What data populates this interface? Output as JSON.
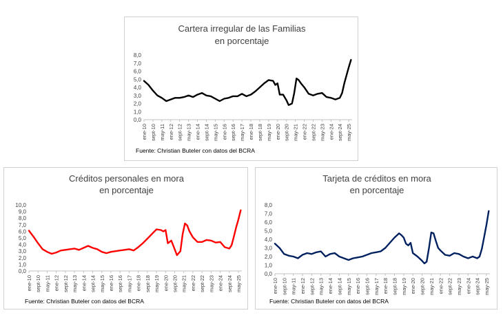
{
  "chart_data": [
    {
      "id": "top",
      "type": "line",
      "title": "Cartera irregular de las Familias",
      "subtitle": "en porcentaje",
      "source": "Fuente: Christian Buteler con datos del BCRA",
      "color": "#000000",
      "ylim": [
        0,
        8
      ],
      "ytick_step": 1,
      "xlim": [
        0,
        187
      ],
      "grid": false,
      "legend": "none",
      "x_ticks": [
        {
          "label": "ene-10",
          "pos": 0
        },
        {
          "label": "sept-10",
          "pos": 8
        },
        {
          "label": "may-11",
          "pos": 16
        },
        {
          "label": "ene-12",
          "pos": 24
        },
        {
          "label": "sept-12",
          "pos": 32
        },
        {
          "label": "may-13",
          "pos": 40
        },
        {
          "label": "ene-14",
          "pos": 48
        },
        {
          "label": "sept-14",
          "pos": 56
        },
        {
          "label": "may-15",
          "pos": 64
        },
        {
          "label": "ene-16",
          "pos": 72
        },
        {
          "label": "sept-16",
          "pos": 80
        },
        {
          "label": "may-17",
          "pos": 88
        },
        {
          "label": "ene-18",
          "pos": 96
        },
        {
          "label": "sept-18",
          "pos": 104
        },
        {
          "label": "may-19",
          "pos": 112
        },
        {
          "label": "ene-20",
          "pos": 120
        },
        {
          "label": "sept-20",
          "pos": 128
        },
        {
          "label": "may-21",
          "pos": 136
        },
        {
          "label": "ene-22",
          "pos": 144
        },
        {
          "label": "sept-22",
          "pos": 152
        },
        {
          "label": "may-23",
          "pos": 160
        },
        {
          "label": "ene-24",
          "pos": 168
        },
        {
          "label": "sept-24",
          "pos": 176
        },
        {
          "label": "may-25",
          "pos": 184
        }
      ],
      "points": [
        [
          0,
          4.8
        ],
        [
          4,
          4.3
        ],
        [
          8,
          3.6
        ],
        [
          12,
          3.0
        ],
        [
          16,
          2.7
        ],
        [
          20,
          2.3
        ],
        [
          24,
          2.5
        ],
        [
          28,
          2.7
        ],
        [
          32,
          2.7
        ],
        [
          36,
          2.8
        ],
        [
          40,
          3.0
        ],
        [
          44,
          2.8
        ],
        [
          48,
          3.1
        ],
        [
          52,
          3.3
        ],
        [
          56,
          3.0
        ],
        [
          60,
          2.9
        ],
        [
          64,
          2.6
        ],
        [
          68,
          2.3
        ],
        [
          72,
          2.6
        ],
        [
          76,
          2.7
        ],
        [
          80,
          2.9
        ],
        [
          84,
          2.9
        ],
        [
          88,
          3.2
        ],
        [
          92,
          2.9
        ],
        [
          96,
          3.1
        ],
        [
          100,
          3.5
        ],
        [
          104,
          4.0
        ],
        [
          108,
          4.5
        ],
        [
          112,
          4.9
        ],
        [
          116,
          4.8
        ],
        [
          118,
          4.3
        ],
        [
          120,
          4.5
        ],
        [
          122,
          3.1
        ],
        [
          125,
          3.1
        ],
        [
          128,
          2.4
        ],
        [
          130,
          1.8
        ],
        [
          133,
          2.0
        ],
        [
          135,
          3.3
        ],
        [
          137,
          5.1
        ],
        [
          139,
          4.9
        ],
        [
          141,
          4.5
        ],
        [
          144,
          4.0
        ],
        [
          148,
          3.2
        ],
        [
          152,
          3.0
        ],
        [
          156,
          3.2
        ],
        [
          160,
          3.3
        ],
        [
          164,
          2.8
        ],
        [
          168,
          2.7
        ],
        [
          172,
          2.5
        ],
        [
          176,
          2.7
        ],
        [
          178,
          3.3
        ],
        [
          180,
          4.5
        ],
        [
          182,
          5.5
        ],
        [
          184,
          6.5
        ],
        [
          186,
          7.4
        ]
      ]
    },
    {
      "id": "left",
      "type": "line",
      "title": "Créditos personales en mora",
      "subtitle": "en porcentaje",
      "source": "Fuente: Christian Buteler con datos del BCRA",
      "color": "#ff0000",
      "ylim": [
        0,
        10
      ],
      "ytick_step": 1,
      "xlim": [
        0,
        187
      ],
      "grid": false,
      "legend": "none",
      "x_ticks": [
        {
          "label": "ene-10",
          "pos": 0
        },
        {
          "label": "sept-10",
          "pos": 8
        },
        {
          "label": "may-11",
          "pos": 16
        },
        {
          "label": "ene-12",
          "pos": 24
        },
        {
          "label": "sept-12",
          "pos": 32
        },
        {
          "label": "may-13",
          "pos": 40
        },
        {
          "label": "ene-14",
          "pos": 48
        },
        {
          "label": "sept-14",
          "pos": 56
        },
        {
          "label": "may-15",
          "pos": 64
        },
        {
          "label": "ene-16",
          "pos": 72
        },
        {
          "label": "sept-16",
          "pos": 80
        },
        {
          "label": "may-17",
          "pos": 88
        },
        {
          "label": "ene-18",
          "pos": 96
        },
        {
          "label": "sept-18",
          "pos": 104
        },
        {
          "label": "may-19",
          "pos": 112
        },
        {
          "label": "ene-20",
          "pos": 120
        },
        {
          "label": "sept-20",
          "pos": 128
        },
        {
          "label": "may-21",
          "pos": 136
        },
        {
          "label": "ene-22",
          "pos": 144
        },
        {
          "label": "sept-22",
          "pos": 152
        },
        {
          "label": "may-23",
          "pos": 160
        },
        {
          "label": "ene-24",
          "pos": 168
        },
        {
          "label": "sept-24",
          "pos": 176
        },
        {
          "label": "may-25",
          "pos": 184
        }
      ],
      "points": [
        [
          0,
          6.1
        ],
        [
          4,
          5.2
        ],
        [
          8,
          4.2
        ],
        [
          12,
          3.3
        ],
        [
          16,
          2.9
        ],
        [
          20,
          2.6
        ],
        [
          24,
          2.8
        ],
        [
          28,
          3.1
        ],
        [
          32,
          3.2
        ],
        [
          36,
          3.3
        ],
        [
          40,
          3.4
        ],
        [
          44,
          3.2
        ],
        [
          48,
          3.5
        ],
        [
          52,
          3.8
        ],
        [
          56,
          3.5
        ],
        [
          60,
          3.3
        ],
        [
          64,
          2.9
        ],
        [
          68,
          2.7
        ],
        [
          72,
          2.9
        ],
        [
          76,
          3.0
        ],
        [
          80,
          3.1
        ],
        [
          84,
          3.2
        ],
        [
          88,
          3.3
        ],
        [
          92,
          3.1
        ],
        [
          96,
          3.6
        ],
        [
          100,
          4.2
        ],
        [
          104,
          4.9
        ],
        [
          108,
          5.6
        ],
        [
          112,
          6.3
        ],
        [
          116,
          6.2
        ],
        [
          118,
          6.0
        ],
        [
          120,
          6.2
        ],
        [
          122,
          4.2
        ],
        [
          125,
          4.6
        ],
        [
          128,
          3.3
        ],
        [
          130,
          2.4
        ],
        [
          133,
          3.0
        ],
        [
          135,
          5.6
        ],
        [
          137,
          7.2
        ],
        [
          139,
          6.9
        ],
        [
          141,
          6.0
        ],
        [
          144,
          5.1
        ],
        [
          148,
          4.4
        ],
        [
          152,
          4.4
        ],
        [
          156,
          4.7
        ],
        [
          160,
          4.6
        ],
        [
          164,
          4.3
        ],
        [
          168,
          4.4
        ],
        [
          172,
          3.6
        ],
        [
          176,
          3.4
        ],
        [
          178,
          3.9
        ],
        [
          180,
          5.2
        ],
        [
          182,
          6.6
        ],
        [
          184,
          7.8
        ],
        [
          186,
          9.2
        ]
      ]
    },
    {
      "id": "right",
      "type": "line",
      "title": "Tarjeta de créditos en mora",
      "subtitle": "en porcentaje",
      "source": "Fuente: Christian Buteler con datos del BCRA",
      "color": "#002060",
      "ylim": [
        0,
        8
      ],
      "ytick_step": 1,
      "xlim": [
        0,
        187
      ],
      "grid": false,
      "legend": "none",
      "x_ticks": [
        {
          "label": "ene-10",
          "pos": 0
        },
        {
          "label": "sept-10",
          "pos": 8
        },
        {
          "label": "may-11",
          "pos": 16
        },
        {
          "label": "ene-12",
          "pos": 24
        },
        {
          "label": "sept-12",
          "pos": 32
        },
        {
          "label": "may-13",
          "pos": 40
        },
        {
          "label": "ene-14",
          "pos": 48
        },
        {
          "label": "sept-14",
          "pos": 56
        },
        {
          "label": "may-15",
          "pos": 64
        },
        {
          "label": "ene-16",
          "pos": 72
        },
        {
          "label": "sept-16",
          "pos": 80
        },
        {
          "label": "may-17",
          "pos": 88
        },
        {
          "label": "ene-18",
          "pos": 96
        },
        {
          "label": "sept-18",
          "pos": 104
        },
        {
          "label": "may-19",
          "pos": 112
        },
        {
          "label": "ene-20",
          "pos": 120
        },
        {
          "label": "sept-20",
          "pos": 128
        },
        {
          "label": "may-21",
          "pos": 136
        },
        {
          "label": "ene-22",
          "pos": 144
        },
        {
          "label": "sept-22",
          "pos": 152
        },
        {
          "label": "may-23",
          "pos": 160
        },
        {
          "label": "ene-24",
          "pos": 168
        },
        {
          "label": "sept-24",
          "pos": 176
        },
        {
          "label": "may-25",
          "pos": 184
        }
      ],
      "points": [
        [
          0,
          3.5
        ],
        [
          4,
          3.0
        ],
        [
          8,
          2.3
        ],
        [
          12,
          2.1
        ],
        [
          16,
          2.0
        ],
        [
          20,
          1.8
        ],
        [
          24,
          2.2
        ],
        [
          28,
          2.4
        ],
        [
          32,
          2.3
        ],
        [
          36,
          2.5
        ],
        [
          40,
          2.6
        ],
        [
          44,
          2.0
        ],
        [
          48,
          2.3
        ],
        [
          52,
          2.4
        ],
        [
          56,
          2.0
        ],
        [
          60,
          1.8
        ],
        [
          64,
          1.6
        ],
        [
          68,
          1.8
        ],
        [
          72,
          1.9
        ],
        [
          76,
          2.0
        ],
        [
          80,
          2.2
        ],
        [
          84,
          2.4
        ],
        [
          88,
          2.5
        ],
        [
          92,
          2.6
        ],
        [
          96,
          3.0
        ],
        [
          100,
          3.6
        ],
        [
          104,
          4.2
        ],
        [
          108,
          4.7
        ],
        [
          110,
          4.5
        ],
        [
          112,
          4.2
        ],
        [
          114,
          3.5
        ],
        [
          116,
          3.3
        ],
        [
          118,
          3.6
        ],
        [
          120,
          2.4
        ],
        [
          124,
          2.0
        ],
        [
          128,
          1.5
        ],
        [
          130,
          1.2
        ],
        [
          132,
          1.4
        ],
        [
          134,
          3.0
        ],
        [
          136,
          4.8
        ],
        [
          138,
          4.7
        ],
        [
          140,
          3.8
        ],
        [
          142,
          3.0
        ],
        [
          144,
          2.7
        ],
        [
          148,
          2.2
        ],
        [
          152,
          2.1
        ],
        [
          156,
          2.4
        ],
        [
          160,
          2.3
        ],
        [
          164,
          2.0
        ],
        [
          168,
          1.8
        ],
        [
          172,
          2.0
        ],
        [
          176,
          1.8
        ],
        [
          178,
          2.0
        ],
        [
          180,
          2.9
        ],
        [
          182,
          4.3
        ],
        [
          184,
          5.7
        ],
        [
          186,
          7.3
        ]
      ]
    }
  ]
}
